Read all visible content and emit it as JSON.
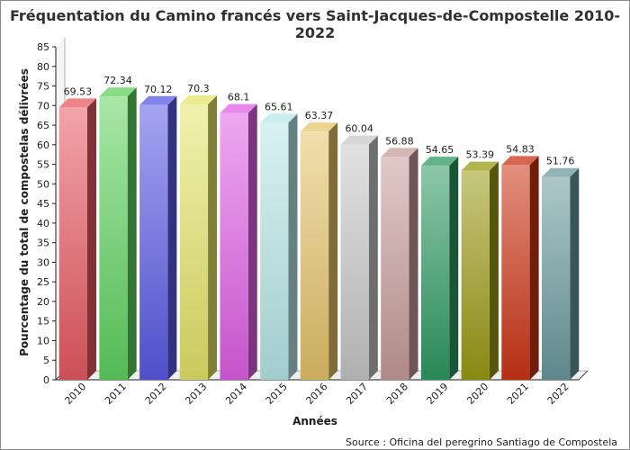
{
  "chart_data": {
    "type": "bar",
    "title": "Fréquentation du Camino francés vers Saint-Jacques-de-Compostelle 2010-2022",
    "xlabel": "Années",
    "ylabel": "Pourcentage du total de compostelas délivrées",
    "source": "Source : Oficina del peregrino Santiago de Compostela",
    "ylim": [
      0,
      85
    ],
    "ytick_step": 5,
    "grid": false,
    "three_d": true,
    "categories": [
      "2010",
      "2011",
      "2012",
      "2013",
      "2014",
      "2015",
      "2016",
      "2017",
      "2018",
      "2019",
      "2020",
      "2021",
      "2022"
    ],
    "values": [
      69.53,
      72.34,
      70.12,
      70.3,
      68.1,
      65.61,
      63.37,
      60.04,
      56.88,
      54.65,
      53.39,
      54.83,
      51.76
    ],
    "colors": [
      "#e85a62",
      "#5fd35f",
      "#5a5ae6",
      "#e6e66a",
      "#e060e6",
      "#b8e8e8",
      "#e6c46a",
      "#c8c8c8",
      "#c89c9c",
      "#2e9a62",
      "#9a9a14",
      "#cc3414",
      "#6a9a9e"
    ]
  }
}
